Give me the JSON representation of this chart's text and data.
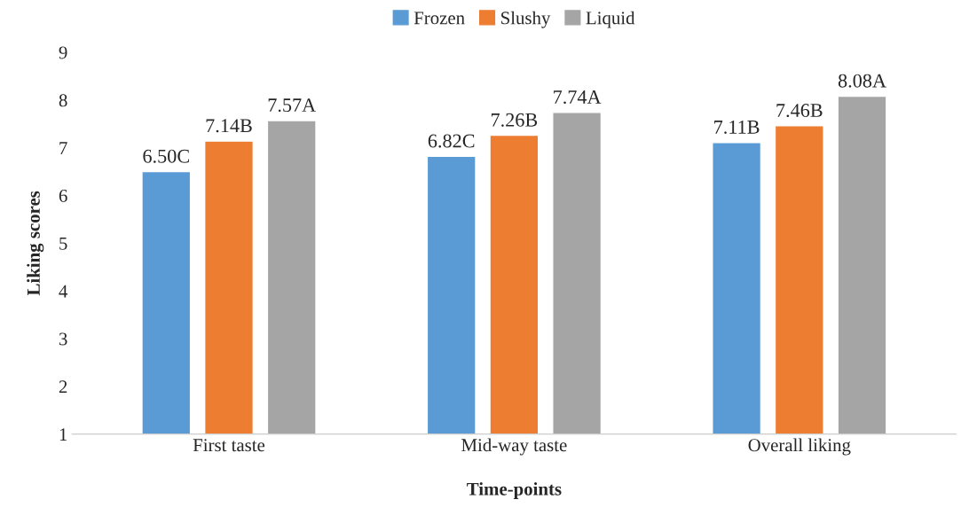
{
  "chart_data": {
    "type": "bar",
    "xlabel": "Time-points",
    "ylabel": "Liking scores",
    "categories": [
      "First taste",
      "Mid-way taste",
      "Overall liking"
    ],
    "series": [
      {
        "name": "Frozen",
        "color": "#5b9bd5",
        "values": [
          6.5,
          6.82,
          7.11
        ],
        "value_labels": [
          "6.50C",
          "6.82C",
          "7.11B"
        ]
      },
      {
        "name": "Slushy",
        "color": "#ed7d31",
        "values": [
          7.14,
          7.26,
          7.46
        ],
        "value_labels": [
          "7.14B",
          "7.26B",
          "7.46B"
        ]
      },
      {
        "name": "Liquid",
        "color": "#a5a5a5",
        "values": [
          7.57,
          7.74,
          8.08
        ],
        "value_labels": [
          "7.57A",
          "7.74A",
          "8.08A"
        ]
      }
    ],
    "ylim": [
      1,
      9
    ],
    "yticks": [
      1,
      2,
      3,
      4,
      5,
      6,
      7,
      8,
      9
    ],
    "grid": false,
    "legend": "top"
  }
}
